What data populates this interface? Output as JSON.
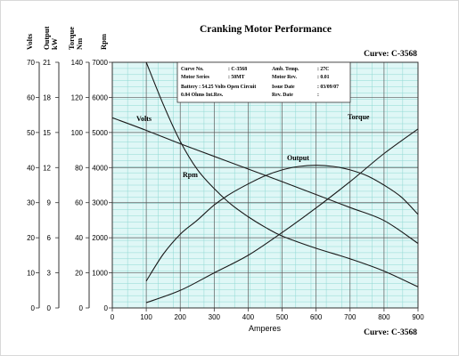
{
  "chart_data": {
    "type": "line",
    "title": "Cranking Motor Performance",
    "curve_label": "Curve: C-3568",
    "xlabel": "Amperes",
    "xlim": [
      0,
      900
    ],
    "x_ticks": [
      0,
      100,
      200,
      300,
      400,
      500,
      600,
      700,
      800,
      900
    ],
    "grid": true,
    "axes": [
      {
        "key": "volts",
        "label": "Volts",
        "range": [
          0,
          70
        ],
        "ticks": [
          0,
          10,
          20,
          30,
          40,
          50,
          60,
          70
        ]
      },
      {
        "key": "output",
        "label": "Output kW",
        "range": [
          0,
          21
        ],
        "ticks": [
          0,
          3,
          6,
          9,
          12,
          15,
          18,
          21
        ]
      },
      {
        "key": "torque",
        "label": "Torque Nm",
        "range": [
          0,
          140
        ],
        "ticks": [
          0,
          20,
          40,
          60,
          80,
          100,
          120,
          140
        ]
      },
      {
        "key": "rpm",
        "label": "Rpm",
        "range": [
          0,
          7000
        ],
        "ticks": [
          0,
          1000,
          2000,
          3000,
          4000,
          5000,
          6000,
          7000
        ]
      }
    ],
    "series": [
      {
        "name": "Volts",
        "axis": "volts",
        "x": [
          0,
          100,
          200,
          300,
          400,
          500,
          600,
          700,
          800,
          900
        ],
        "y": [
          54.2,
          50.6,
          46.8,
          43.2,
          39.6,
          36.0,
          32.3,
          28.6,
          24.9,
          18.4
        ]
      },
      {
        "name": "Output",
        "axis": "output",
        "x": [
          100,
          150,
          200,
          250,
          300,
          350,
          400,
          450,
          500,
          550,
          600,
          650,
          700,
          750,
          800,
          850,
          900
        ],
        "y": [
          2.3,
          4.6,
          6.3,
          7.5,
          8.8,
          9.8,
          10.6,
          11.3,
          11.8,
          12.1,
          12.2,
          12.1,
          11.8,
          11.3,
          10.5,
          9.5,
          8.0
        ]
      },
      {
        "name": "Rpm",
        "axis": "rpm",
        "x": [
          100,
          150,
          200,
          250,
          300,
          350,
          400,
          450,
          500,
          600,
          700,
          800,
          900
        ],
        "y": [
          7000,
          5800,
          4750,
          3950,
          3400,
          2950,
          2600,
          2300,
          2050,
          1700,
          1400,
          1050,
          600
        ]
      },
      {
        "name": "Torque",
        "axis": "torque",
        "x": [
          100,
          200,
          300,
          400,
          500,
          600,
          700,
          800,
          900
        ],
        "y": [
          3,
          10,
          20,
          30,
          43,
          57,
          72,
          88,
          102
        ]
      }
    ],
    "series_labels": [
      "Volts",
      "Output",
      "Rpm",
      "Torque"
    ],
    "info_box": {
      "rows": [
        [
          "Curve No.",
          ": C-3568",
          "Amb. Temp.",
          ": 27C"
        ],
        [
          "Motor Series",
          ": 50MT",
          "Motor Rev.",
          ": 0.01"
        ],
        [
          "Battery : 54.25 Volts Open Circuit",
          "",
          "Issue Date",
          ": 03/09/07"
        ],
        [
          "0.04 Ohms Int.Res.",
          "",
          "Rev. Date",
          ":"
        ]
      ]
    }
  }
}
